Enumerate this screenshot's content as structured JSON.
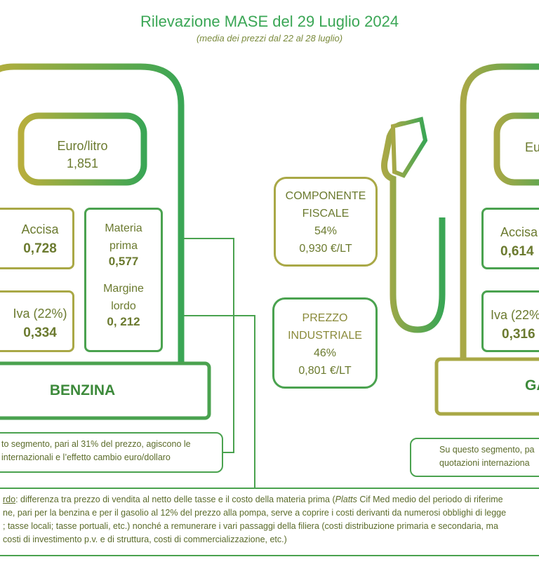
{
  "title": "Rilevazione MASE del 29 Luglio 2024",
  "subtitle": "(media dei prezzi dal 22 al 28 luglio)",
  "benzina": {
    "price_label": "Euro/litro",
    "price_value": "1,851",
    "accisa_label": "Accisa",
    "accisa_value": "0,728",
    "iva_label": "Iva (22%)",
    "iva_value": "0,334",
    "materia_label_1": "Materia",
    "materia_label_2": "prima",
    "materia_value": "0,577",
    "margine_label_1": "Margine",
    "margine_label_2": "lordo",
    "margine_value": "0, 212",
    "fuel_name": "BENZINA",
    "note_line1": "to segmento, pari al 31% del prezzo, agiscono le",
    "note_line2": "internazionali e l’effetto cambio euro/dollaro"
  },
  "center": {
    "fiscal_line1": "COMPONENTE",
    "fiscal_line2": "FISCALE",
    "fiscal_pct": "54%",
    "fiscal_value": "0,930 €/LT",
    "industrial_line1": "PREZZO",
    "industrial_line2": "INDUSTRIALE",
    "industrial_pct": "46%",
    "industrial_value": "0,801 €/LT"
  },
  "gasolio": {
    "price_label": "Eu",
    "accisa_label": "Accisa",
    "accisa_value": "0,614",
    "iva_label": "Iva (22%",
    "iva_value": "0,316",
    "fuel_name": "GA",
    "note_line1": "Su questo segmento, pa",
    "note_line2": "quotazioni internaziona"
  },
  "bottom_note": {
    "term": "rdo",
    "line1_rest": ": differenza tra prezzo di vendita al netto delle tasse e il costo della materia prima (",
    "platts": "Platts",
    "line1_end": " Cif Med medio del periodo di riferime",
    "line2": "ne, pari per la benzina e per il gasolio al 12% del prezzo alla pompa, serve a coprire i costi derivanti da numerosi obblighi di legge",
    "line3": "; tasse locali; tasse portuali, etc.) nonché a remunerare i vari passaggi della filiera (costi distribuzione primaria e secondaria, ma",
    "line4": "costi di investimento p.v. e di struttura, costi di commercializzazione, etc.)"
  },
  "colors": {
    "green": "#4aa24f",
    "olive": "#a9a846",
    "title_green": "#3aa655"
  }
}
